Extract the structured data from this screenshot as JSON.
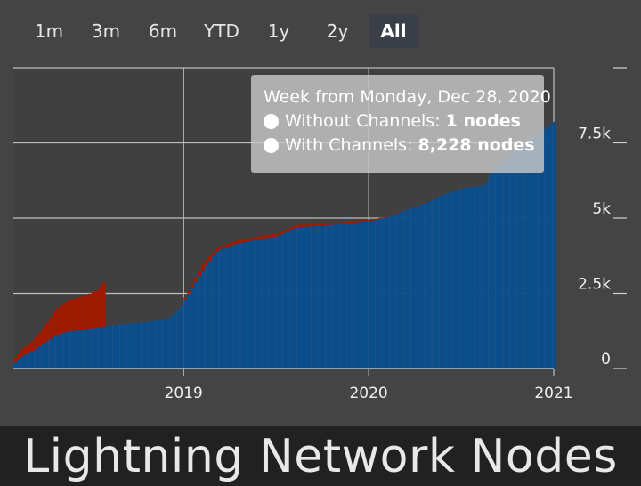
{
  "range_buttons": [
    {
      "label": "1m",
      "active": false
    },
    {
      "label": "3m",
      "active": false
    },
    {
      "label": "6m",
      "active": false
    },
    {
      "label": "YTD",
      "active": false
    },
    {
      "label": "1y",
      "active": false
    },
    {
      "label": "2y",
      "active": false
    },
    {
      "label": "All",
      "active": true
    }
  ],
  "tooltip": {
    "header": "Week from Monday, Dec 28, 2020",
    "row1_label": "Without Channels: ",
    "row1_value": "1 nodes",
    "row2_label": "With Channels: ",
    "row2_value": "8,228 nodes"
  },
  "title": "Lightning Network Nodes",
  "colors": {
    "background": "#444444",
    "with_channels": "#0a4e8c",
    "without_channels": "#a01a00",
    "title_bar": "#212121"
  },
  "chart_data": {
    "type": "bar",
    "stacked": true,
    "title": "Lightning Network Nodes",
    "x_ticks": [
      "2019",
      "2020",
      "2021"
    ],
    "x_tick_years": [
      2019,
      2020,
      2021
    ],
    "xlim": [
      2018.08,
      2021.0
    ],
    "y_ticks": [
      "0",
      "2.5k",
      "5k",
      "7.5k"
    ],
    "y_tick_values": [
      0,
      2500,
      5000,
      7500
    ],
    "ylim": [
      0,
      10000
    ],
    "y_axis_position": "right",
    "grid": true,
    "series": [
      {
        "name": "With Channels",
        "points": [
          [
            2018.08,
            200
          ],
          [
            2018.12,
            400
          ],
          [
            2018.18,
            600
          ],
          [
            2018.24,
            850
          ],
          [
            2018.3,
            1100
          ],
          [
            2018.36,
            1230
          ],
          [
            2018.44,
            1280
          ],
          [
            2018.52,
            1330
          ],
          [
            2018.58,
            1420
          ],
          [
            2018.66,
            1470
          ],
          [
            2018.76,
            1530
          ],
          [
            2018.86,
            1600
          ],
          [
            2018.92,
            1700
          ],
          [
            2018.97,
            2000
          ],
          [
            2019.03,
            2600
          ],
          [
            2019.1,
            3300
          ],
          [
            2019.18,
            3950
          ],
          [
            2019.28,
            4150
          ],
          [
            2019.4,
            4300
          ],
          [
            2019.5,
            4400
          ],
          [
            2019.6,
            4700
          ],
          [
            2019.75,
            4750
          ],
          [
            2019.9,
            4850
          ],
          [
            2020.0,
            4900
          ],
          [
            2020.1,
            5050
          ],
          [
            2020.2,
            5300
          ],
          [
            2020.3,
            5500
          ],
          [
            2020.4,
            5800
          ],
          [
            2020.5,
            6000
          ],
          [
            2020.62,
            6100
          ],
          [
            2020.66,
            6600
          ],
          [
            2020.75,
            7100
          ],
          [
            2020.85,
            7600
          ],
          [
            2020.95,
            8000
          ],
          [
            2021.0,
            8228
          ]
        ]
      },
      {
        "name": "Without Channels",
        "points": [
          [
            2018.08,
            150
          ],
          [
            2018.12,
            250
          ],
          [
            2018.18,
            350
          ],
          [
            2018.24,
            550
          ],
          [
            2018.3,
            850
          ],
          [
            2018.36,
            1030
          ],
          [
            2018.44,
            1100
          ],
          [
            2018.52,
            1260
          ],
          [
            2018.56,
            1480
          ],
          [
            2018.58,
            0
          ],
          [
            2018.66,
            0
          ],
          [
            2018.76,
            0
          ],
          [
            2018.86,
            0
          ],
          [
            2018.92,
            0
          ],
          [
            2018.97,
            20
          ],
          [
            2019.03,
            100
          ],
          [
            2019.1,
            200
          ],
          [
            2019.18,
            100
          ],
          [
            2019.28,
            100
          ],
          [
            2019.4,
            100
          ],
          [
            2019.5,
            100
          ],
          [
            2019.6,
            80
          ],
          [
            2019.75,
            60
          ],
          [
            2019.9,
            60
          ],
          [
            2020.0,
            40
          ],
          [
            2020.1,
            20
          ],
          [
            2020.2,
            10
          ],
          [
            2020.3,
            5
          ],
          [
            2020.4,
            5
          ],
          [
            2020.5,
            5
          ],
          [
            2020.62,
            5
          ],
          [
            2020.66,
            3
          ],
          [
            2020.75,
            2
          ],
          [
            2020.85,
            1
          ],
          [
            2020.95,
            1
          ],
          [
            2021.0,
            1
          ]
        ]
      }
    ]
  }
}
